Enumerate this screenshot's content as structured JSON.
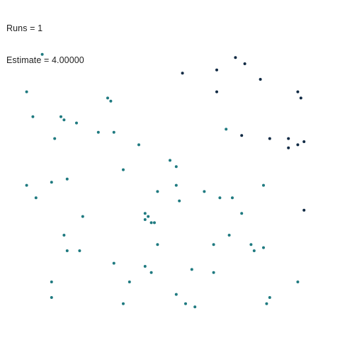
{
  "readout": {
    "runs_text": "Runs = 1",
    "estimate_text": "Estimate = 4.00000"
  },
  "colors": {
    "background": "#ffffff",
    "inside": "#1f7a80",
    "outside": "#102a44",
    "text": "#222222"
  },
  "chart_data": {
    "type": "scatter",
    "title": "",
    "xlabel": "",
    "ylabel": "",
    "xlim": [
      0,
      1
    ],
    "ylim": [
      0,
      1
    ],
    "grid": false,
    "legend": "none",
    "series": [
      {
        "color": "#1f7a80",
        "points": [
          [
            0.09,
            0.88
          ],
          [
            0.04,
            0.76
          ],
          [
            0.06,
            0.68
          ],
          [
            0.15,
            0.68
          ],
          [
            0.16,
            0.67
          ],
          [
            0.13,
            0.61
          ],
          [
            0.2,
            0.66
          ],
          [
            0.3,
            0.74
          ],
          [
            0.31,
            0.73
          ],
          [
            0.27,
            0.63
          ],
          [
            0.32,
            0.63
          ],
          [
            0.4,
            0.59
          ],
          [
            0.35,
            0.51
          ],
          [
            0.12,
            0.47
          ],
          [
            0.17,
            0.48
          ],
          [
            0.04,
            0.46
          ],
          [
            0.07,
            0.42
          ],
          [
            0.22,
            0.36
          ],
          [
            0.16,
            0.3
          ],
          [
            0.17,
            0.25
          ],
          [
            0.21,
            0.25
          ],
          [
            0.32,
            0.21
          ],
          [
            0.12,
            0.15
          ],
          [
            0.12,
            0.1
          ],
          [
            0.35,
            0.08
          ],
          [
            0.42,
            0.2
          ],
          [
            0.44,
            0.18
          ],
          [
            0.37,
            0.15
          ],
          [
            0.52,
            0.11
          ],
          [
            0.55,
            0.08
          ],
          [
            0.58,
            0.07
          ],
          [
            0.57,
            0.19
          ],
          [
            0.64,
            0.18
          ],
          [
            0.64,
            0.27
          ],
          [
            0.69,
            0.3
          ],
          [
            0.76,
            0.27
          ],
          [
            0.77,
            0.25
          ],
          [
            0.8,
            0.26
          ],
          [
            0.82,
            0.1
          ],
          [
            0.81,
            0.08
          ],
          [
            0.91,
            0.15
          ],
          [
            0.42,
            0.37
          ],
          [
            0.43,
            0.36
          ],
          [
            0.42,
            0.35
          ],
          [
            0.44,
            0.34
          ],
          [
            0.45,
            0.34
          ],
          [
            0.46,
            0.27
          ],
          [
            0.46,
            0.44
          ],
          [
            0.5,
            0.54
          ],
          [
            0.52,
            0.52
          ],
          [
            0.52,
            0.46
          ],
          [
            0.53,
            0.41
          ],
          [
            0.61,
            0.44
          ],
          [
            0.66,
            0.42
          ],
          [
            0.7,
            0.42
          ],
          [
            0.73,
            0.37
          ],
          [
            0.8,
            0.46
          ],
          [
            0.68,
            0.64
          ]
        ]
      },
      {
        "color": "#102a44",
        "points": [
          [
            0.54,
            0.82
          ],
          [
            0.65,
            0.83
          ],
          [
            0.71,
            0.87
          ],
          [
            0.74,
            0.85
          ],
          [
            0.79,
            0.8
          ],
          [
            0.65,
            0.76
          ],
          [
            0.91,
            0.76
          ],
          [
            0.92,
            0.74
          ],
          [
            0.73,
            0.62
          ],
          [
            0.82,
            0.61
          ],
          [
            0.88,
            0.61
          ],
          [
            0.91,
            0.59
          ],
          [
            0.93,
            0.6
          ],
          [
            0.88,
            0.58
          ],
          [
            0.93,
            0.38
          ]
        ]
      }
    ]
  }
}
